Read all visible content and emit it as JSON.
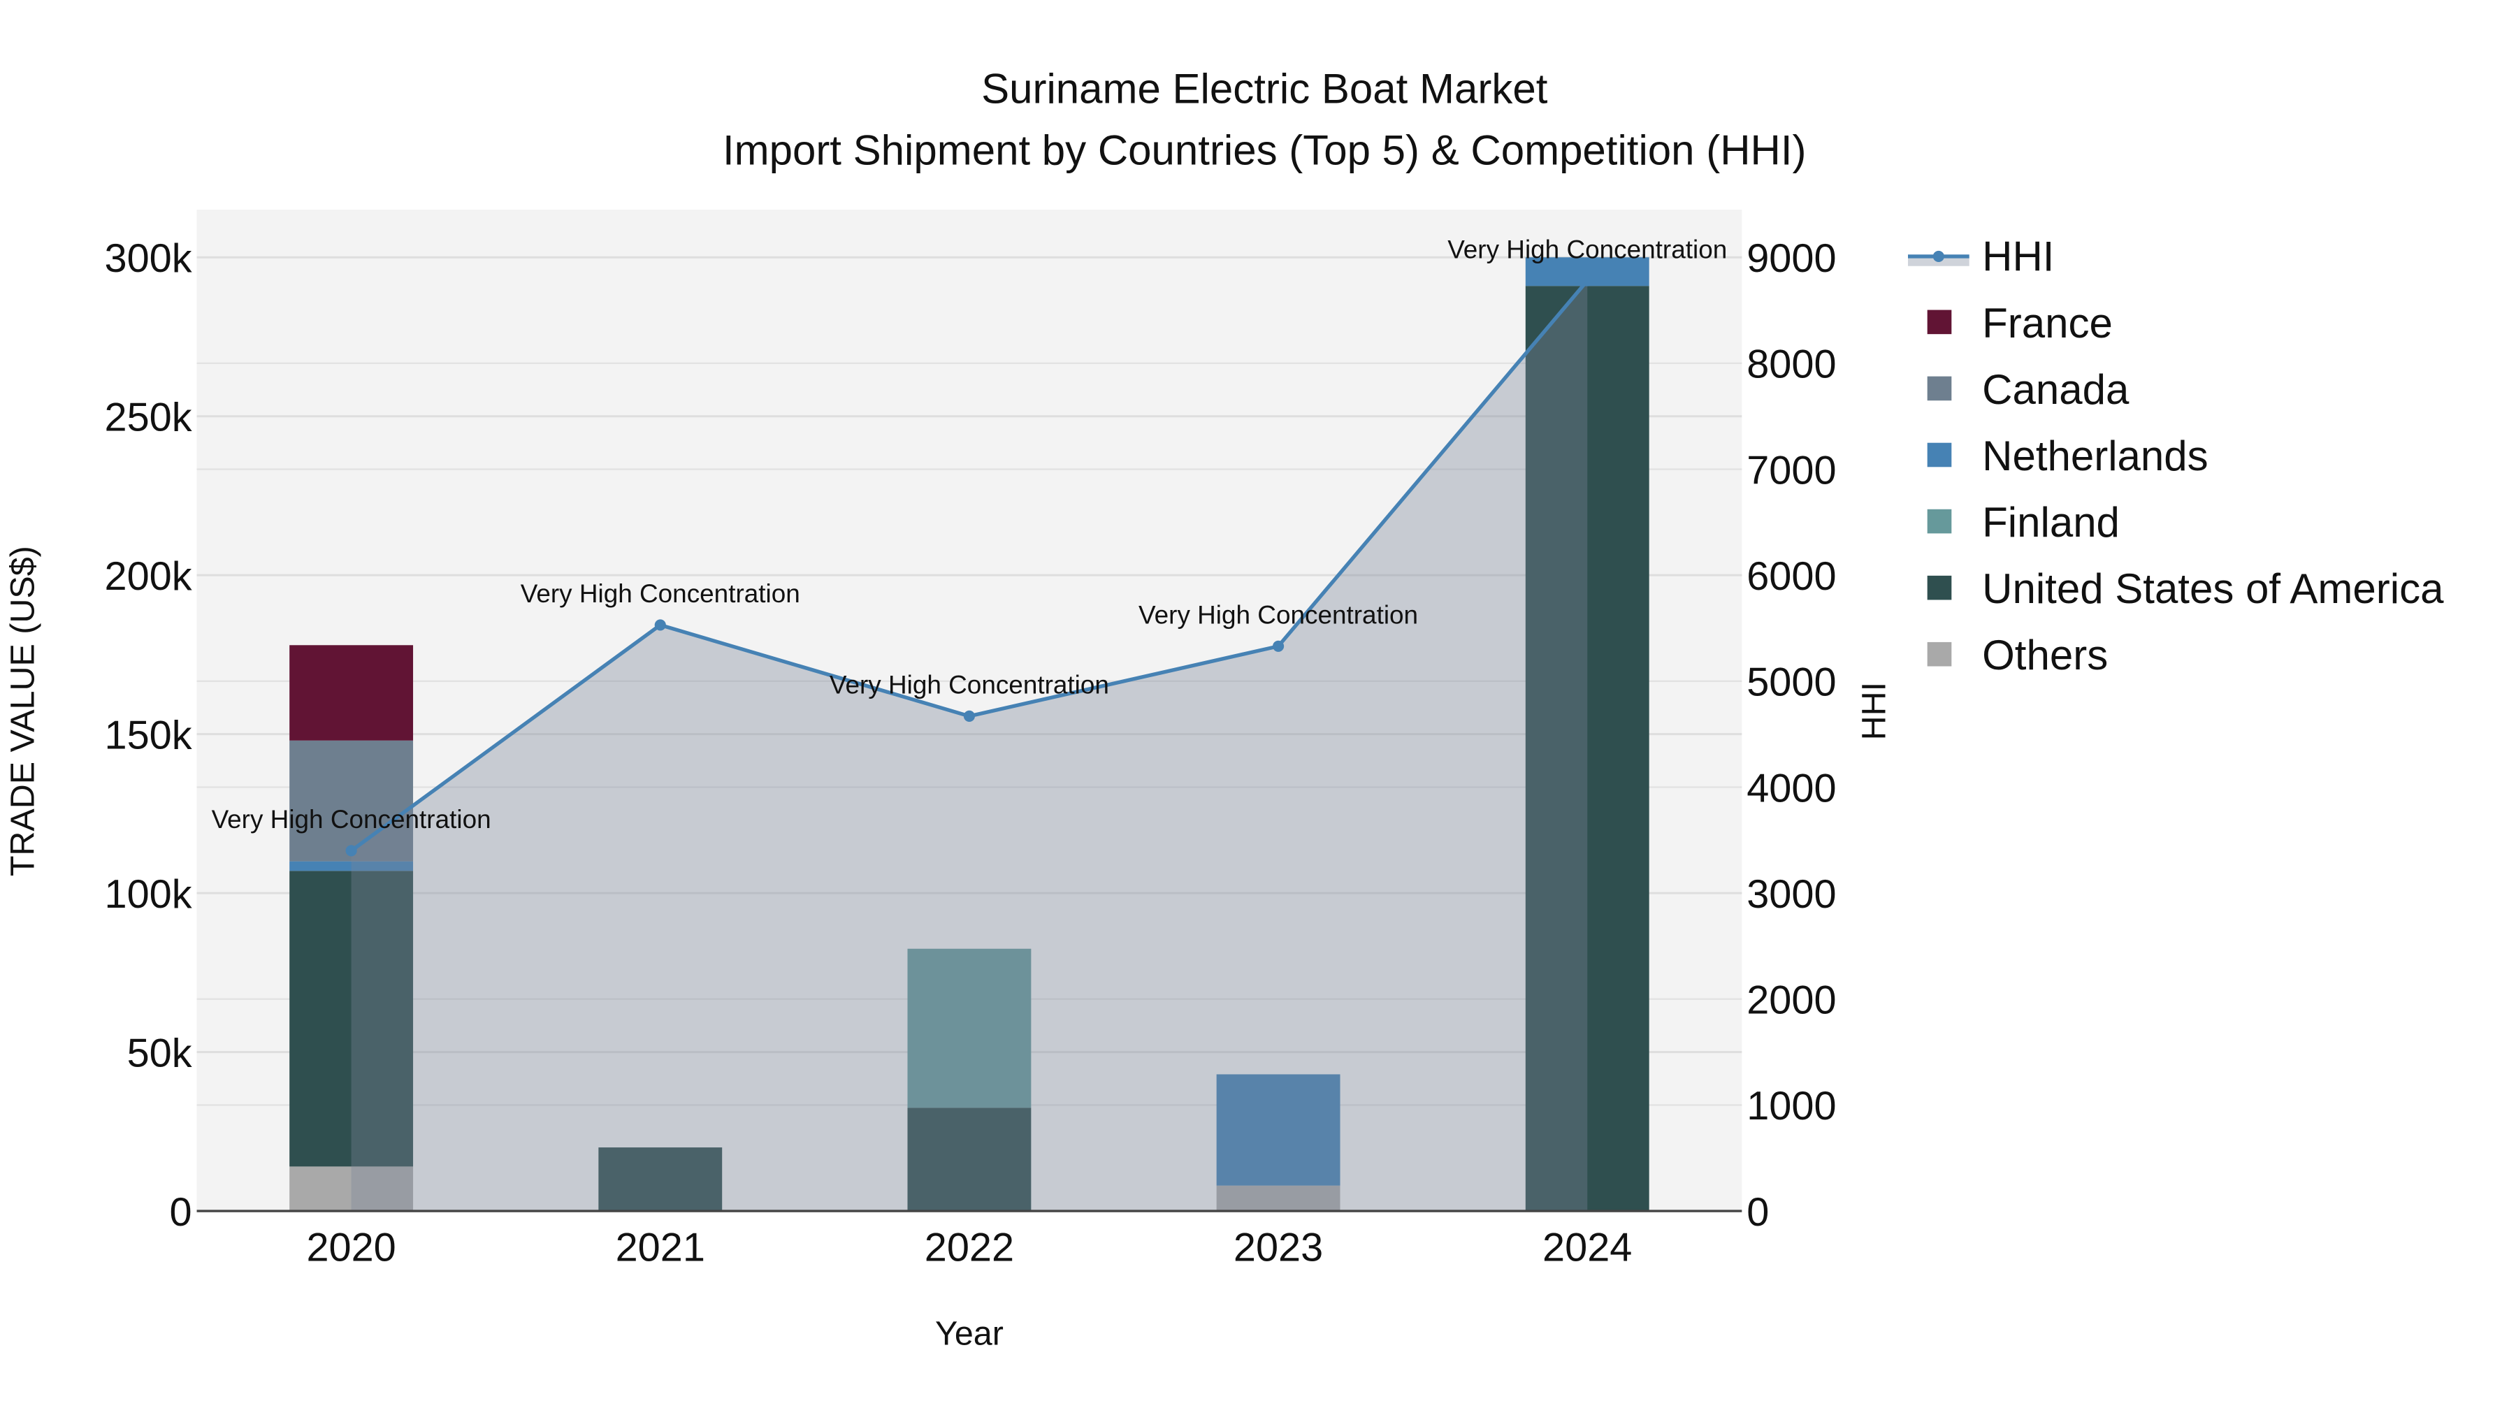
{
  "chart_data": {
    "type": "bar",
    "title": "Suriname Electric Boat Market",
    "subtitle": "Import Shipment by Countries (Top 5) & Competition (HHI)",
    "xlabel": "Year",
    "ylabel": "TRADE VALUE (US$)",
    "y2label": "HHI",
    "categories": [
      "2020",
      "2021",
      "2022",
      "2023",
      "2024"
    ],
    "ylim": [
      0,
      315000
    ],
    "y2lim": [
      0,
      9450
    ],
    "yticks": [
      0,
      50000,
      100000,
      150000,
      200000,
      250000,
      300000
    ],
    "ytick_labels": [
      "0",
      "50k",
      "100k",
      "150k",
      "200k",
      "250k",
      "300k"
    ],
    "y2ticks": [
      0,
      1000,
      2000,
      3000,
      4000,
      5000,
      6000,
      7000,
      8000,
      9000
    ],
    "y2tick_labels": [
      "0",
      "1000",
      "2000",
      "3000",
      "4000",
      "5000",
      "6000",
      "7000",
      "8000",
      "9000"
    ],
    "stack_order": [
      "Others",
      "United States of America",
      "Finland",
      "Netherlands",
      "Canada",
      "France"
    ],
    "series": [
      {
        "name": "France",
        "color": "#611434",
        "values": [
          30000,
          0,
          0,
          0,
          0
        ]
      },
      {
        "name": "Canada",
        "color": "#6e7f8f",
        "values": [
          38000,
          0,
          0,
          0,
          0
        ]
      },
      {
        "name": "Netherlands",
        "color": "#4682b4",
        "values": [
          3000,
          0,
          0,
          35000,
          9000
        ]
      },
      {
        "name": "Finland",
        "color": "#66999b",
        "values": [
          0,
          0,
          50000,
          0,
          0
        ]
      },
      {
        "name": "United States of America",
        "color": "#2f4f4f",
        "values": [
          93000,
          20000,
          32500,
          0,
          291000
        ]
      },
      {
        "name": "Others",
        "color": "#a9a9a9",
        "values": [
          14000,
          0,
          0,
          8000,
          0
        ]
      }
    ],
    "hhi": {
      "name": "HHI",
      "color": "#4682b4",
      "values": [
        3400,
        5530,
        4670,
        5330,
        8780
      ],
      "annotations": [
        "Very High Concentration",
        "Very High Concentration",
        "Very High Concentration",
        "Very High Concentration",
        "Very High Concentration"
      ]
    },
    "legend": [
      "HHI",
      "France",
      "Canada",
      "Netherlands",
      "Finland",
      "United States of America",
      "Others"
    ],
    "legend_position": "right",
    "grid": true
  }
}
